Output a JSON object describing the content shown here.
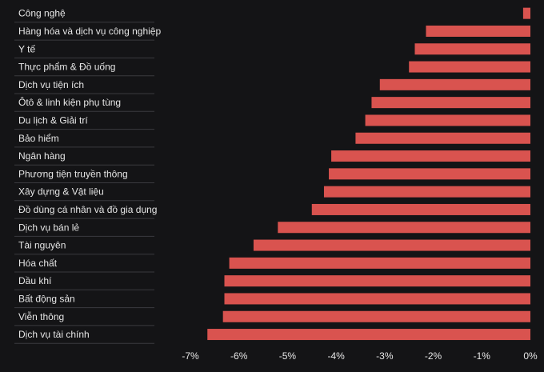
{
  "chart_data": {
    "type": "bar",
    "orientation": "horizontal",
    "categories": [
      "Công nghệ",
      "Hàng hóa và dịch vụ công nghiệp",
      "Y tế",
      "Thực phẩm & Đồ uống",
      "Dịch vụ tiện ích",
      "Ôtô & linh kiện phụ tùng",
      "Du lịch & Giải trí",
      "Bảo hiểm",
      "Ngân hàng",
      "Phương tiện truyền thông",
      "Xây dựng & Vật liệu",
      "Đồ dùng cá nhân và đồ gia dụng",
      "Dịch vụ bán lẻ",
      "Tài nguyên",
      "Hóa chất",
      "Dầu khí",
      "Bất động sản",
      "Viễn thông",
      "Dịch vụ tài chính"
    ],
    "values": [
      -0.15,
      -2.15,
      -2.38,
      -2.5,
      -3.1,
      -3.27,
      -3.4,
      -3.6,
      -4.1,
      -4.15,
      -4.25,
      -4.5,
      -5.2,
      -5.7,
      -6.2,
      -6.3,
      -6.3,
      -6.33,
      -6.65
    ],
    "xticks": [
      -7,
      -6,
      -5,
      -4,
      -3,
      -2,
      -1,
      0
    ],
    "xtick_labels": [
      "-7%",
      "-6%",
      "-5%",
      "-4%",
      "-3%",
      "-2%",
      "-1%",
      "0%"
    ],
    "xlim": [
      -7,
      0
    ],
    "bar_color": "#d9534f",
    "background_color": "#141416",
    "text_color": "#e6e6e6",
    "grid": false
  }
}
